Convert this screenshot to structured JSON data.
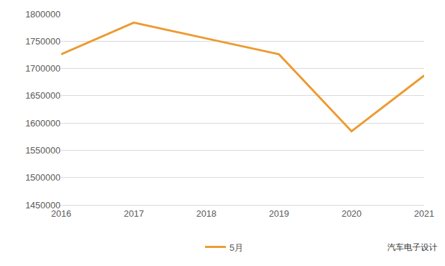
{
  "chart_data": {
    "type": "line",
    "categories": [
      "2016",
      "2017",
      "2018",
      "2019",
      "2020",
      "2021"
    ],
    "series": [
      {
        "name": "5月",
        "color": "#ed9a30",
        "values": [
          1726000,
          1784000,
          1755000,
          1726000,
          1585000,
          1687000
        ]
      }
    ],
    "ylim": [
      1450000,
      1800000
    ],
    "yticks": [
      1450000,
      1500000,
      1550000,
      1600000,
      1650000,
      1700000,
      1750000,
      1800000
    ],
    "grid": true,
    "legend": "bottom",
    "annotations": [
      "汽车电子设计"
    ]
  }
}
